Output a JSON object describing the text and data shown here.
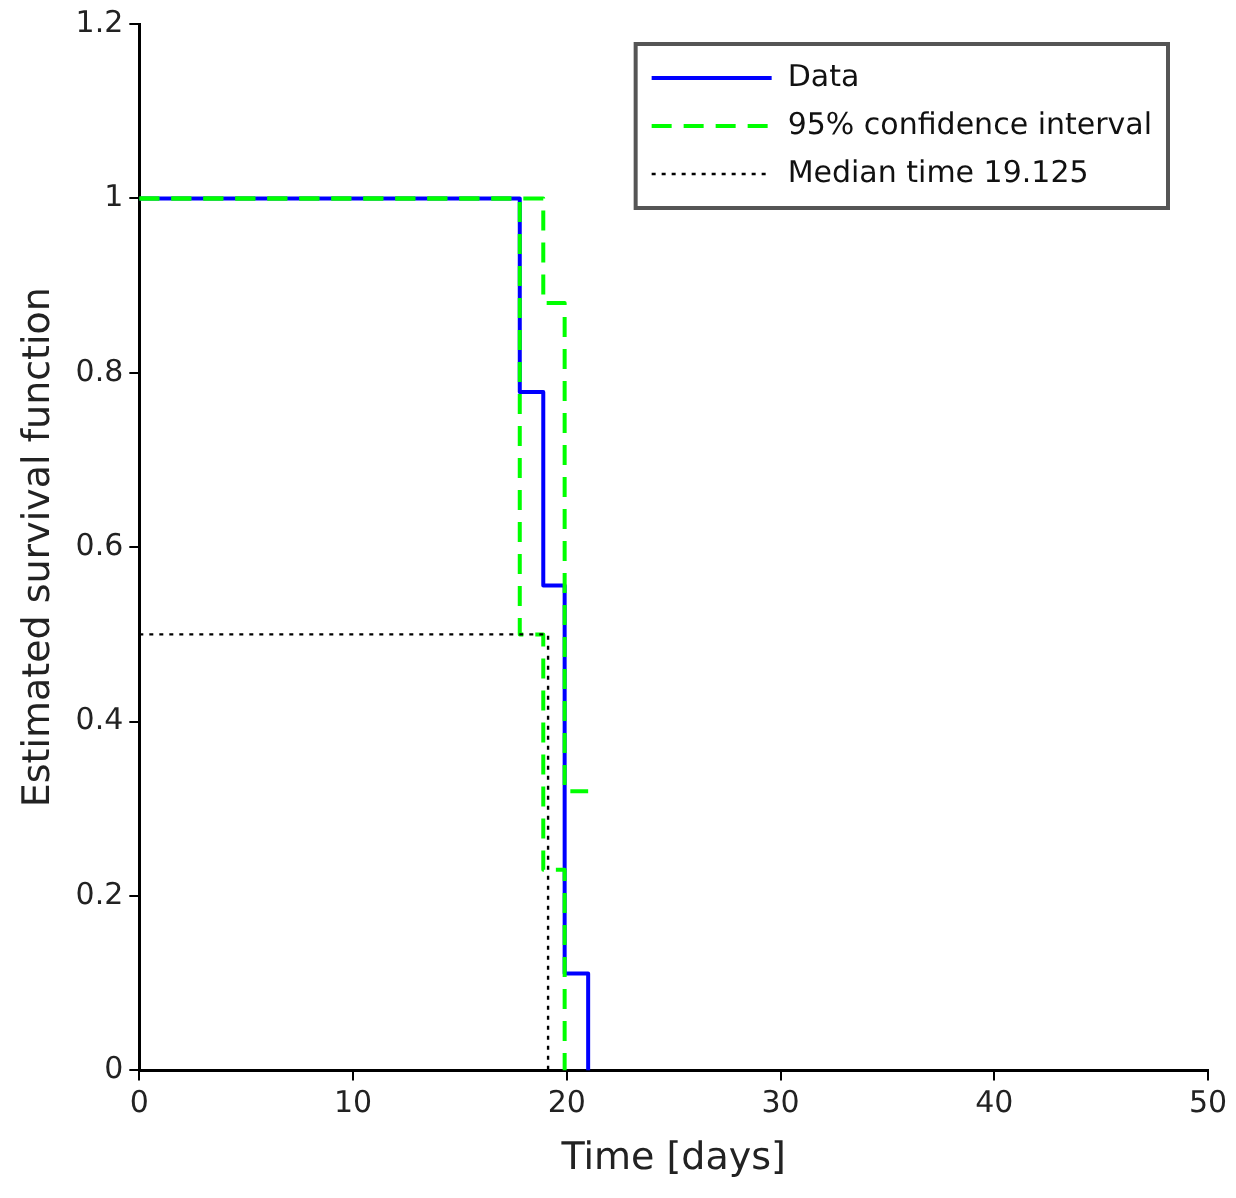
{
  "chart_data": {
    "type": "step",
    "xlabel": "Time [days]",
    "ylabel": "Estimated survival function",
    "xlim": [
      0,
      50
    ],
    "xticks": [
      0,
      10,
      20,
      30,
      40,
      50
    ],
    "ylim": [
      0,
      1.2
    ],
    "yticks": [
      0,
      0.2,
      0.4,
      0.6,
      0.8,
      1,
      1.2
    ],
    "grid": false,
    "legend": "top right",
    "marker": "none",
    "series": [
      {
        "name": "Data",
        "color": "#0000ff",
        "x": [
          0,
          17.8,
          18.9,
          19.9,
          21
        ],
        "values": [
          1,
          0.778,
          0.556,
          0.111,
          0
        ],
        "line_style": "solid"
      },
      {
        "name": "95% confidence interval",
        "color": "#00ff00",
        "x": [
          0,
          17.8,
          18.9,
          19.9
        ],
        "values": [
          1,
          0.5,
          0.23,
          0
        ],
        "line_style": "dashed"
      },
      {
        "color": "#00ff00",
        "x": [
          0,
          18.9,
          19.9,
          21
        ],
        "values": [
          1,
          0.88,
          0.32,
          0.32
        ],
        "line_style": "dashed"
      },
      {
        "name": "Median time 19.125",
        "type": "line",
        "color": "#000000",
        "x": [
          0,
          19.125,
          19.125
        ],
        "values": [
          0.5,
          0.5,
          0
        ],
        "line_style": "dotted"
      }
    ]
  }
}
